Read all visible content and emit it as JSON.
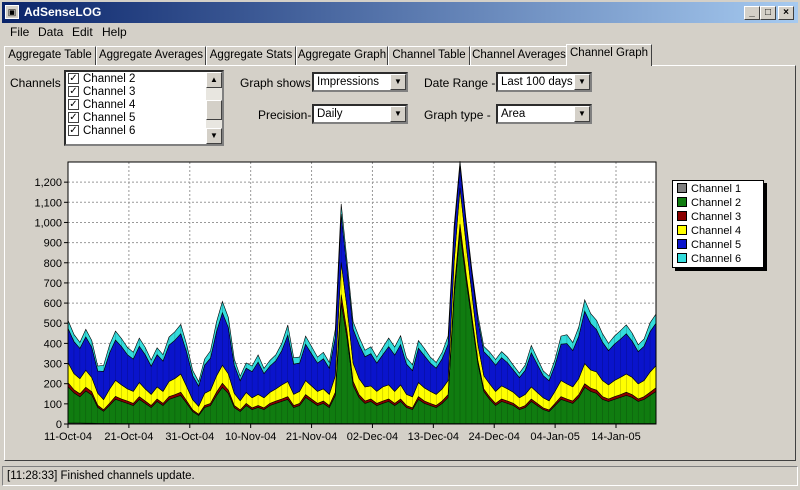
{
  "window": {
    "title": "AdSenseLOG",
    "min_glyph": "_",
    "max_glyph": "□",
    "close_glyph": "×",
    "app_icon_glyph": "▣"
  },
  "menu": [
    "File",
    "Data",
    "Edit",
    "Help"
  ],
  "tabs": [
    "Aggregate Table",
    "Aggregate Averages",
    "Aggregate Stats",
    "Aggregate Graph",
    "Channel Table",
    "Channel Averages",
    "Channel Graph"
  ],
  "active_tab": "Channel Graph",
  "channels": {
    "label": "Channels -",
    "items": [
      {
        "label": "Channel 2",
        "checked": true
      },
      {
        "label": "Channel 3",
        "checked": true
      },
      {
        "label": "Channel 4",
        "checked": true
      },
      {
        "label": "Channel 5",
        "checked": true
      },
      {
        "label": "Channel 6",
        "checked": true
      }
    ],
    "check_glyph": "✓",
    "scroll_up_glyph": "▲",
    "scroll_down_glyph": "▼"
  },
  "controls": {
    "graph_shows_label": "Graph shows -",
    "graph_shows_value": "Impressions",
    "date_range_label": "Date Range -",
    "date_range_value": "Last 100 days",
    "precision_label": "Precision-",
    "precision_value": "Daily",
    "graph_type_label": "Graph type -",
    "graph_type_value": "Area",
    "dropdown_glyph": "▼"
  },
  "status": {
    "text": "[11:28:33] Finished channels update."
  },
  "chart_data": {
    "type": "area",
    "stacked": true,
    "ylim": [
      0,
      1300
    ],
    "yticks": [
      0,
      100,
      200,
      300,
      400,
      500,
      600,
      700,
      800,
      900,
      1000,
      1100,
      1200
    ],
    "ytick_labels": [
      "0",
      "100",
      "200",
      "300",
      "400",
      "500",
      "600",
      "700",
      "800",
      "900",
      "1,000",
      "1,100",
      "1,200"
    ],
    "x_labels": [
      "11-Oct-04",
      "21-Oct-04",
      "31-Oct-04",
      "10-Nov-04",
      "21-Nov-04",
      "02-Dec-04",
      "13-Dec-04",
      "24-Dec-04",
      "04-Jan-05",
      "14-Jan-05"
    ],
    "grid": true,
    "legend_position": "right",
    "x_days": 100,
    "series": [
      {
        "name": "Channel 1",
        "color": "#808080",
        "total": [
          5,
          5,
          5,
          4,
          4,
          3,
          3,
          3,
          3,
          2,
          2,
          2,
          2,
          2,
          2,
          2,
          2,
          2,
          2,
          2,
          2,
          2,
          2,
          2,
          2,
          2,
          2,
          2,
          2,
          2,
          2,
          2,
          2,
          2,
          2,
          2,
          2,
          2,
          2,
          2,
          2,
          2,
          2,
          2,
          2,
          2,
          2,
          2,
          2,
          2,
          2,
          2,
          2,
          2,
          2,
          2,
          2,
          2,
          2,
          2,
          2,
          2,
          2,
          2,
          2,
          2,
          2,
          2,
          2,
          2,
          2,
          2,
          2,
          2,
          2,
          2,
          2,
          2,
          2,
          2,
          2,
          2,
          2,
          2,
          2,
          2,
          2,
          2,
          2,
          2,
          2,
          2,
          2,
          2,
          2,
          2,
          2,
          2,
          2,
          2
        ]
      },
      {
        "name": "Channel 2",
        "color": "#107c10",
        "total": [
          180,
          150,
          130,
          160,
          140,
          80,
          60,
          90,
          120,
          110,
          100,
          90,
          120,
          100,
          80,
          110,
          90,
          120,
          130,
          140,
          100,
          60,
          40,
          80,
          90,
          140,
          180,
          150,
          80,
          60,
          90,
          70,
          80,
          70,
          90,
          100,
          110,
          120,
          80,
          90,
          130,
          110,
          90,
          100,
          80,
          140,
          600,
          420,
          190,
          130,
          100,
          110,
          90,
          100,
          110,
          90,
          110,
          80,
          70,
          120,
          100,
          90,
          80,
          100,
          130,
          630,
          950,
          720,
          510,
          300,
          160,
          120,
          90,
          110,
          100,
          90,
          70,
          80,
          110,
          90,
          70,
          60,
          90,
          120,
          110,
          100,
          130,
          180,
          160,
          150,
          120,
          110,
          120,
          130,
          140,
          130,
          110,
          120,
          140,
          160
        ]
      },
      {
        "name": "Channel 3",
        "color": "#8b0000",
        "total": [
          20,
          15,
          15,
          18,
          16,
          10,
          8,
          10,
          14,
          12,
          12,
          10,
          14,
          12,
          10,
          12,
          10,
          14,
          14,
          16,
          12,
          8,
          6,
          10,
          10,
          16,
          20,
          16,
          10,
          8,
          10,
          8,
          10,
          8,
          10,
          12,
          12,
          14,
          10,
          10,
          14,
          12,
          10,
          12,
          10,
          16,
          40,
          30,
          20,
          14,
          12,
          12,
          10,
          12,
          12,
          10,
          12,
          10,
          8,
          14,
          12,
          10,
          10,
          12,
          14,
          30,
          40,
          30,
          24,
          16,
          12,
          12,
          10,
          12,
          12,
          10,
          8,
          10,
          12,
          10,
          8,
          8,
          10,
          14,
          12,
          12,
          14,
          18,
          16,
          16,
          14,
          12,
          14,
          14,
          16,
          14,
          12,
          14,
          16,
          18
        ]
      },
      {
        "name": "Channel 4",
        "color": "#ffff00",
        "total": [
          100,
          80,
          75,
          85,
          70,
          60,
          50,
          70,
          80,
          70,
          60,
          60,
          70,
          60,
          55,
          60,
          60,
          75,
          80,
          90,
          70,
          50,
          40,
          60,
          65,
          80,
          90,
          80,
          60,
          45,
          55,
          50,
          55,
          50,
          55,
          60,
          70,
          75,
          55,
          60,
          70,
          65,
          60,
          60,
          55,
          80,
          160,
          120,
          90,
          80,
          70,
          65,
          60,
          70,
          70,
          60,
          70,
          55,
          55,
          70,
          65,
          60,
          55,
          60,
          70,
          140,
          180,
          150,
          110,
          80,
          65,
          65,
          60,
          65,
          60,
          55,
          50,
          55,
          60,
          55,
          50,
          45,
          60,
          80,
          75,
          70,
          80,
          100,
          90,
          90,
          80,
          70,
          80,
          85,
          90,
          85,
          75,
          80,
          100,
          110
        ]
      },
      {
        "name": "Channel 5",
        "color": "#0a14cc",
        "total": [
          170,
          160,
          150,
          165,
          150,
          110,
          140,
          180,
          200,
          190,
          170,
          160,
          180,
          170,
          140,
          160,
          150,
          180,
          190,
          200,
          170,
          120,
          100,
          140,
          160,
          220,
          260,
          230,
          140,
          100,
          120,
          130,
          160,
          120,
          130,
          140,
          170,
          230,
          150,
          140,
          180,
          160,
          140,
          150,
          130,
          190,
          240,
          190,
          170,
          170,
          150,
          160,
          140,
          160,
          190,
          180,
          200,
          150,
          130,
          170,
          160,
          140,
          130,
          150,
          180,
          150,
          110,
          100,
          100,
          120,
          120,
          130,
          130,
          140,
          130,
          110,
          100,
          120,
          170,
          140,
          110,
          100,
          130,
          180,
          200,
          180,
          210,
          260,
          230,
          210,
          190,
          170,
          180,
          190,
          200,
          180,
          160,
          170,
          200,
          210
        ]
      },
      {
        "name": "Channel 6",
        "color": "#33dcdc",
        "total": [
          40,
          35,
          30,
          38,
          34,
          25,
          30,
          40,
          44,
          40,
          36,
          34,
          40,
          36,
          30,
          34,
          32,
          40,
          42,
          46,
          38,
          26,
          22,
          30,
          36,
          48,
          56,
          50,
          30,
          22,
          26,
          28,
          36,
          26,
          28,
          30,
          36,
          50,
          32,
          30,
          40,
          36,
          30,
          32,
          28,
          42,
          50,
          40,
          36,
          36,
          32,
          34,
          30,
          36,
          42,
          40,
          44,
          32,
          28,
          38,
          36,
          30,
          28,
          32,
          40,
          30,
          22,
          20,
          20,
          26,
          26,
          28,
          28,
          30,
          28,
          24,
          22,
          26,
          36,
          30,
          24,
          22,
          28,
          40,
          44,
          40,
          46,
          56,
          50,
          46,
          42,
          36,
          40,
          42,
          44,
          40,
          34,
          36,
          44,
          46
        ]
      }
    ]
  }
}
